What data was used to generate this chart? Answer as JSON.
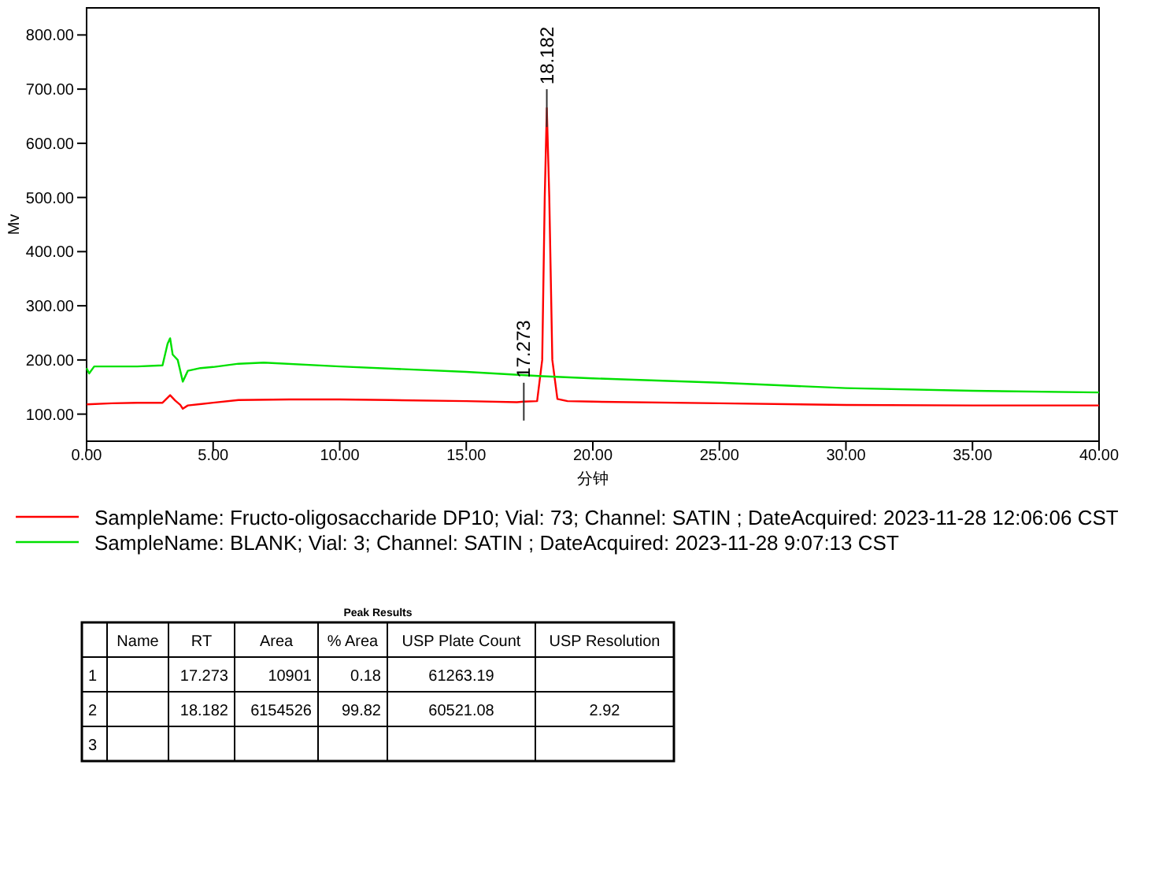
{
  "chart_data": [
    {
      "type": "line",
      "xlabel": "分钟",
      "ylabel": "Mv",
      "xlim": [
        0,
        40
      ],
      "ylim": [
        50,
        850
      ],
      "xticks": [
        {
          "value": 0,
          "label": "0.00"
        },
        {
          "value": 5,
          "label": "5.00"
        },
        {
          "value": 10,
          "label": "10.00"
        },
        {
          "value": 15,
          "label": "15.00"
        },
        {
          "value": 20,
          "label": "20.00"
        },
        {
          "value": 25,
          "label": "25.00"
        },
        {
          "value": 30,
          "label": "30.00"
        },
        {
          "value": 35,
          "label": "35.00"
        },
        {
          "value": 40,
          "label": "40.00"
        }
      ],
      "yticks": [
        {
          "value": 100,
          "label": "100.00"
        },
        {
          "value": 200,
          "label": "200.00"
        },
        {
          "value": 300,
          "label": "300.00"
        },
        {
          "value": 400,
          "label": "400.00"
        },
        {
          "value": 500,
          "label": "500.00"
        },
        {
          "value": 600,
          "label": "600.00"
        },
        {
          "value": 700,
          "label": "700.00"
        },
        {
          "value": 800,
          "label": "800.00"
        }
      ],
      "legend": "bottom",
      "grid": false,
      "series": [
        {
          "name": "SampleName: Fructo-oligosaccharide DP10; Vial: 73; Channel: SATIN ; DateAcquired: 2023-11-28 12:06:06 CST",
          "color": "#ff0000",
          "x": [
            0,
            1,
            2,
            3,
            3.3,
            3.5,
            3.7,
            3.8,
            4,
            5,
            6,
            8,
            10,
            12,
            15,
            17,
            17.27,
            17.8,
            18,
            18.1,
            18.182,
            18.28,
            18.4,
            18.6,
            19,
            20,
            25,
            30,
            35,
            40
          ],
          "values": [
            118,
            120,
            121,
            121,
            135,
            125,
            117,
            110,
            116,
            121,
            126,
            127,
            127,
            126,
            124,
            122,
            123,
            124,
            200,
            500,
            665,
            500,
            200,
            128,
            124,
            123,
            120,
            117,
            116,
            116
          ]
        },
        {
          "name": "SampleName: BLANK; Vial: 3; Channel: SATIN ; DateAcquired: 2023-11-28 9:07:13 CST",
          "color": "#00e000",
          "x": [
            0,
            0.1,
            0.3,
            2,
            3,
            3.2,
            3.3,
            3.4,
            3.6,
            3.8,
            4,
            4.5,
            5,
            6,
            7,
            10,
            15,
            18,
            20,
            25,
            30,
            35,
            40
          ],
          "values": [
            185,
            175,
            188,
            188,
            190,
            230,
            240,
            210,
            200,
            160,
            180,
            185,
            187,
            193,
            195,
            188,
            178,
            170,
            166,
            158,
            148,
            143,
            140
          ]
        }
      ],
      "annotations": [
        {
          "text": "18.182",
          "x": 18.182,
          "y": 665
        },
        {
          "text": "17.273",
          "x": 17.273,
          "y": 123
        }
      ]
    },
    {
      "type": "other",
      "title": "Peak Results",
      "categories": [
        "Name",
        "RT",
        "Area",
        "% Area",
        "USP Plate Count",
        "USP Resolution"
      ],
      "y_categories": [
        "1",
        "2",
        "3"
      ],
      "cell_labels": [
        [
          null,
          "17.273",
          "10901",
          "0.18",
          "61263.19",
          null
        ],
        [
          null,
          "18.182",
          "6154526",
          "99.82",
          "60521.08",
          "2.92"
        ],
        [
          null,
          null,
          null,
          null,
          null,
          null
        ]
      ]
    }
  ]
}
